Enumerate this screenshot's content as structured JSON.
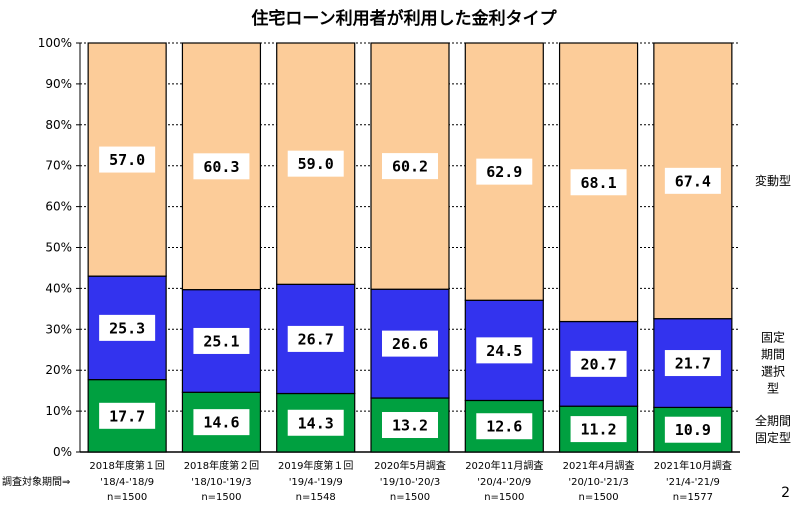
{
  "page_number": "2",
  "chart_data": {
    "type": "bar",
    "stacked": true,
    "title": "住宅ローン利用者が利用した金利タイプ",
    "ylim": [
      0,
      100
    ],
    "yticks": [
      "0%",
      "10%",
      "20%",
      "30%",
      "40%",
      "50%",
      "60%",
      "70%",
      "80%",
      "90%",
      "100%"
    ],
    "period_prefix": "調査対象期間⇒",
    "categories": [
      {
        "line1": "2018年度第１回",
        "line2": "'18/4-'18/9",
        "n": "n=1500"
      },
      {
        "line1": "2018年度第２回",
        "line2": "'18/10-'19/3",
        "n": "n=1500"
      },
      {
        "line1": "2019年度第１回",
        "line2": "'19/4-'19/9",
        "n": "n=1548"
      },
      {
        "line1": "2020年5月調査",
        "line2": "'19/10-'20/3",
        "n": "n=1500"
      },
      {
        "line1": "2020年11月調査",
        "line2": "'20/4-'20/9",
        "n": "n=1500"
      },
      {
        "line1": "2021年4月調査",
        "line2": "'20/10-'21/3",
        "n": "n=1500"
      },
      {
        "line1": "2021年10月調査",
        "line2": "'21/4-'21/9",
        "n": "n=1577"
      }
    ],
    "series": [
      {
        "name": "全期間\n固定型",
        "color": "#00a040",
        "values": [
          17.7,
          14.6,
          14.3,
          13.2,
          12.6,
          11.2,
          10.9
        ],
        "labels": [
          "17.7",
          "14.6",
          "14.3",
          "13.2",
          "12.6",
          "11.2",
          "10.9"
        ]
      },
      {
        "name": "固定\n期間\n選択\n型",
        "color": "#3333ee",
        "values": [
          25.3,
          25.1,
          26.7,
          26.6,
          24.5,
          20.7,
          21.7
        ],
        "labels": [
          "25.3",
          "25.1",
          "26.7",
          "26.6",
          "24.5",
          "20.7",
          "21.7"
        ]
      },
      {
        "name": "変動型",
        "color": "#fccc99",
        "values": [
          57.0,
          60.3,
          59.0,
          60.2,
          62.9,
          68.1,
          67.4
        ],
        "labels": [
          "57.0",
          "60.3",
          "59.0",
          "60.2",
          "62.9",
          "68.1",
          "67.4"
        ]
      }
    ]
  }
}
